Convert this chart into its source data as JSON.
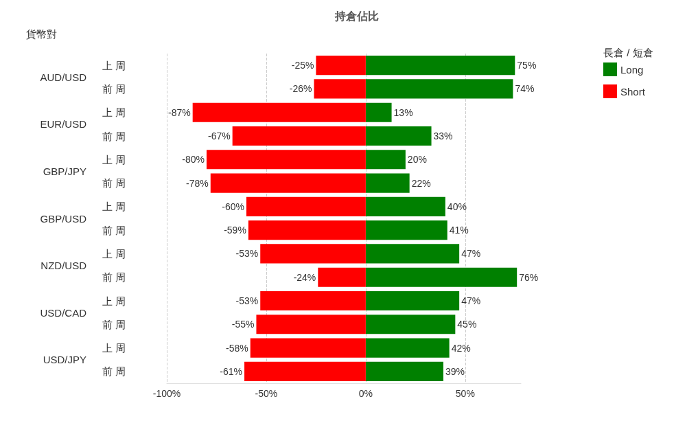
{
  "chart_data": {
    "type": "bar",
    "title": "持倉佔比",
    "ylabel": "貨幣對",
    "legend_title": "長倉 / 短倉",
    "orientation": "horizontal",
    "stacked": true,
    "categories": [
      "上 周",
      "前 周",
      "上 周",
      "前 周",
      "上 周",
      "前 周",
      "上 周",
      "前 周",
      "上 周",
      "前 周",
      "上 周",
      "前 周",
      "上 周",
      "前 周"
    ],
    "series": [
      {
        "name": "Long",
        "color": "#008000",
        "values": [
          75,
          74,
          13,
          33,
          20,
          22,
          40,
          41,
          47,
          76,
          47,
          45,
          42,
          39
        ],
        "value_labels": [
          "75%",
          "74%",
          "13%",
          "33%",
          "20%",
          "22%",
          "40%",
          "41%",
          "47%",
          "76%",
          "47%",
          "45%",
          "42%",
          "39%"
        ]
      },
      {
        "name": "Short",
        "color": "#ff0000",
        "values": [
          -25,
          -26,
          -87,
          -67,
          -80,
          -78,
          -60,
          -59,
          -53,
          -24,
          -53,
          -55,
          -58,
          -61
        ],
        "value_labels": [
          "-25%",
          "-26%",
          "-87%",
          "-67%",
          "-80%",
          "-78%",
          "-60%",
          "-59%",
          "-53%",
          "-24%",
          "-53%",
          "-55%",
          "-58%",
          "-61%"
        ]
      }
    ],
    "xlim": [
      -100,
      78
    ],
    "xticks": [
      {
        "value": -100,
        "label": "-100%"
      },
      {
        "value": -50,
        "label": "-50%"
      },
      {
        "value": 0,
        "label": "0%"
      },
      {
        "value": 50,
        "label": "50%"
      }
    ],
    "grid": "x",
    "legend": "top right",
    "annotations": [
      "AUD/USD",
      "EUR/USD",
      "GBP/JPY",
      "GBP/USD",
      "NZD/USD",
      "USD/CAD",
      "USD/JPY"
    ]
  }
}
